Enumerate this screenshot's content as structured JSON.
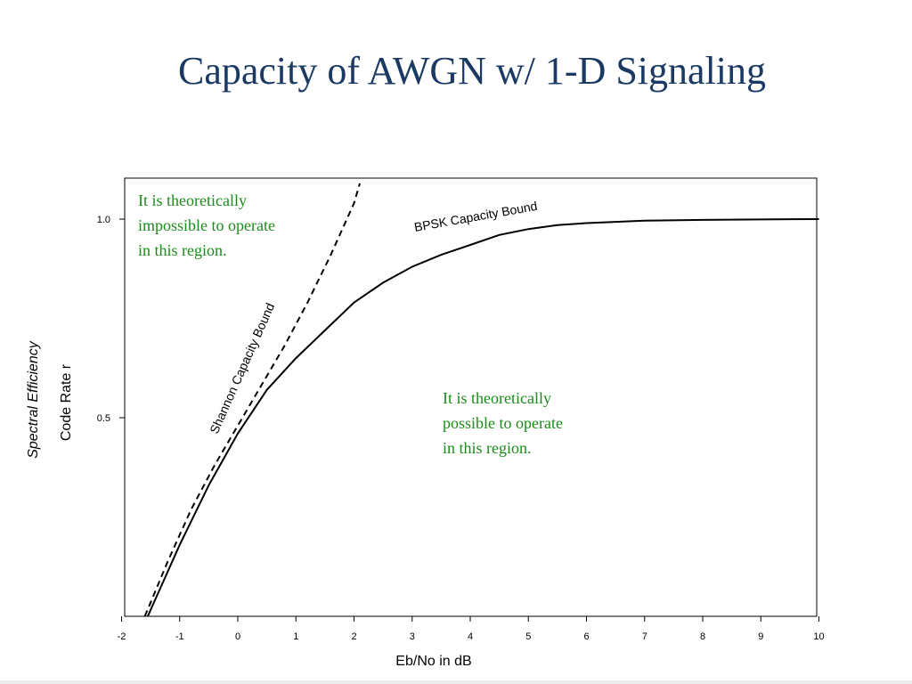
{
  "slide": {
    "title": "Capacity of AWGN w/ 1-D Signaling"
  },
  "colors": {
    "title": "#1b3a63",
    "annotation": "#1a8c1a",
    "curve": "#000000"
  },
  "chart_data": {
    "type": "line",
    "title": "",
    "xlabel": "Eb/No in dB",
    "ylabel_italic": "Spectral Efficiency",
    "ylabel": "Code Rate r",
    "xlim": [
      -2,
      10
    ],
    "ylim": [
      0,
      1.1
    ],
    "x_ticks": [
      -2,
      -1,
      0,
      1,
      2,
      3,
      4,
      5,
      6,
      7,
      8,
      9,
      10
    ],
    "y_ticks": [
      {
        "value": 0.5,
        "label": "0.5"
      },
      {
        "value": 1.0,
        "label": "1.0"
      }
    ],
    "grid": false,
    "series": [
      {
        "name": "Shannon Capacity Bound",
        "style": "dashed",
        "x": [
          -1.6,
          -1.2,
          -0.8,
          -0.4,
          0.0,
          0.4,
          0.8,
          1.2,
          1.6,
          2.0,
          2.1
        ],
        "y": [
          0.0,
          0.14,
          0.27,
          0.38,
          0.48,
          0.58,
          0.68,
          0.79,
          0.91,
          1.04,
          1.09
        ]
      },
      {
        "name": "BPSK Capacity Bound",
        "style": "solid",
        "x": [
          -1.55,
          -1.0,
          -0.5,
          0.0,
          0.5,
          1.0,
          1.5,
          2.0,
          2.5,
          3.0,
          3.5,
          4.0,
          4.5,
          5.0,
          5.5,
          6.0,
          7.0,
          8.0,
          9.0,
          10.0
        ],
        "y": [
          0.0,
          0.18,
          0.33,
          0.46,
          0.57,
          0.65,
          0.72,
          0.79,
          0.84,
          0.88,
          0.91,
          0.935,
          0.96,
          0.975,
          0.985,
          0.99,
          0.996,
          0.998,
          0.999,
          1.0
        ]
      }
    ],
    "annotations": {
      "impossible": [
        "It is theoretically",
        "impossible to operate",
        "in this region."
      ],
      "possible": [
        "It is theoretically",
        "possible to operate",
        "in this region."
      ]
    }
  }
}
